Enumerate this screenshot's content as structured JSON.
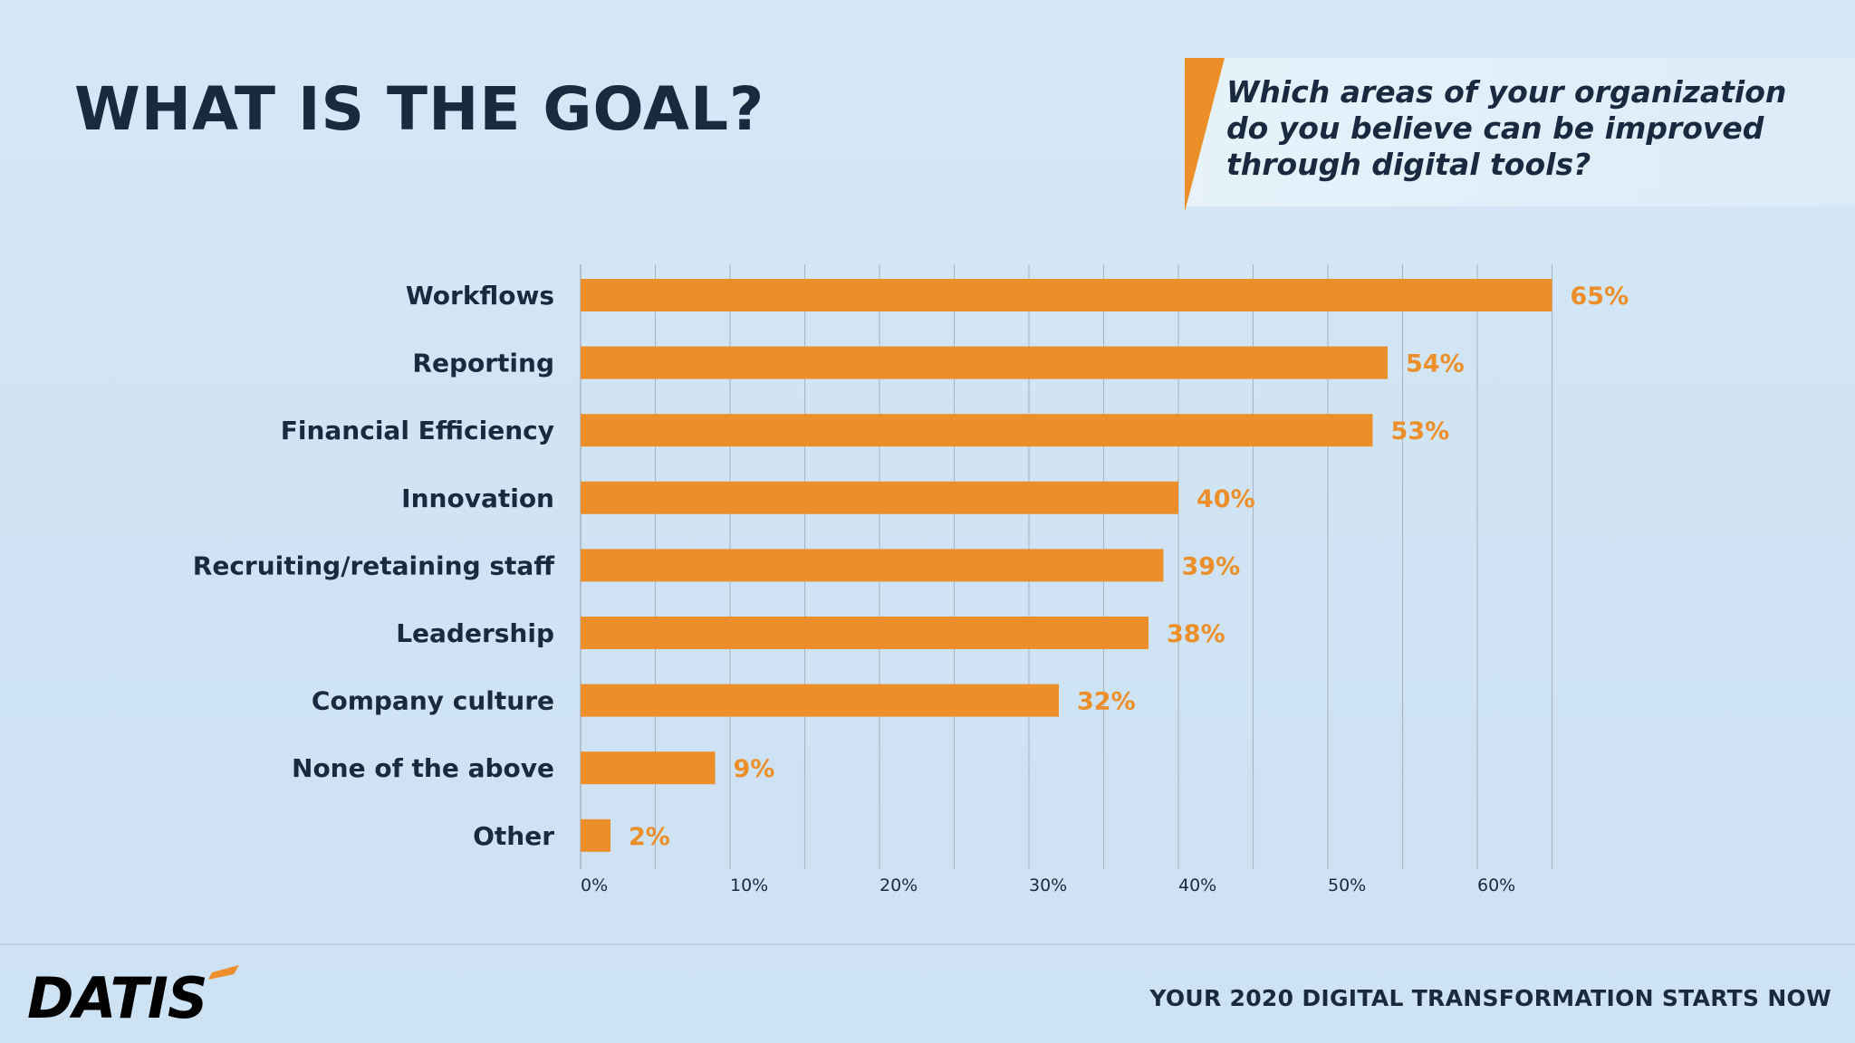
{
  "header": {
    "title": "WHAT IS THE GOAL?",
    "question": "Which areas of your organization do you believe can be improved through digital tools?"
  },
  "footer": {
    "logo_text": "DATIS",
    "tagline": "YOUR 2020 DIGITAL TRANSFORMATION STARTS NOW"
  },
  "colors": {
    "bar": "#ec8f2a",
    "text_dark": "#192a40",
    "grid": "#9aa8b6",
    "background": "#d3e6f5"
  },
  "chart_data": {
    "type": "bar",
    "orientation": "horizontal",
    "title": "",
    "xlabel": "",
    "ylabel": "",
    "categories": [
      "Workflows",
      "Reporting",
      "Financial Efficiency",
      "Innovation",
      "Recruiting/retaining staff",
      "Leadership",
      "Company culture",
      "None of the above",
      "Other"
    ],
    "values": [
      65,
      54,
      53,
      40,
      39,
      38,
      32,
      9,
      2
    ],
    "value_labels": [
      "65%",
      "54%",
      "53%",
      "40%",
      "39%",
      "38%",
      "32%",
      "9%",
      "2%"
    ],
    "xlim": [
      0,
      70
    ],
    "x_ticks": [
      0,
      10,
      20,
      30,
      40,
      50,
      60
    ],
    "x_tick_labels": [
      "0%",
      "10%",
      "20%",
      "30%",
      "40%",
      "50%",
      "60%"
    ],
    "grid": true,
    "grid_minor_step": 5,
    "legend": "none"
  }
}
